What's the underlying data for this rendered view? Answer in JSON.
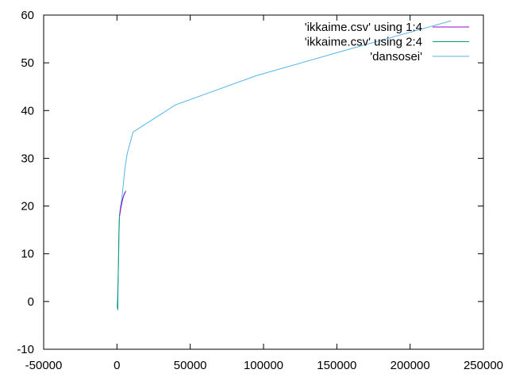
{
  "chart_data": {
    "type": "line",
    "title": "",
    "xlabel": "",
    "ylabel": "",
    "xlim": [
      -50000,
      250000
    ],
    "ylim": [
      -10,
      60
    ],
    "x_ticks": [
      -50000,
      0,
      50000,
      100000,
      150000,
      200000,
      250000
    ],
    "y_ticks": [
      -10,
      0,
      10,
      20,
      30,
      40,
      50,
      60
    ],
    "grid": false,
    "legend_position": "top-right",
    "series": [
      {
        "name": "'ikkaime.csv' using 1:4",
        "color": "#9400d3",
        "points": [
          [
            1800,
            18.0
          ],
          [
            2600,
            19.5
          ],
          [
            3400,
            20.8
          ],
          [
            4200,
            21.8
          ],
          [
            5000,
            22.5
          ],
          [
            5800,
            23.0
          ]
        ]
      },
      {
        "name": "'ikkaime.csv' using 2:4",
        "color": "#009e73",
        "points": [
          [
            600,
            -1.8
          ],
          [
            700,
            2.0
          ],
          [
            900,
            6.0
          ],
          [
            1100,
            10.0
          ],
          [
            1300,
            14.0
          ],
          [
            1600,
            17.5
          ],
          [
            2200,
            19.0
          ],
          [
            3200,
            20.5
          ],
          [
            4200,
            21.8
          ],
          [
            5400,
            22.8
          ],
          [
            6200,
            23.2
          ]
        ]
      },
      {
        "name": "'dansosei'",
        "color": "#56b4e9",
        "points": [
          [
            0,
            -1.5
          ],
          [
            400,
            1.0
          ],
          [
            800,
            5.0
          ],
          [
            1200,
            10.0
          ],
          [
            1500,
            15.0
          ],
          [
            1800,
            18.0
          ],
          [
            2500,
            20.0
          ],
          [
            3500,
            22.0
          ],
          [
            4500,
            25.0
          ],
          [
            5500,
            28.0
          ],
          [
            7000,
            31.0
          ],
          [
            11000,
            35.5
          ],
          [
            40000,
            41.2
          ],
          [
            95000,
            47.3
          ],
          [
            160000,
            53.0
          ],
          [
            228000,
            58.8
          ]
        ]
      }
    ]
  }
}
